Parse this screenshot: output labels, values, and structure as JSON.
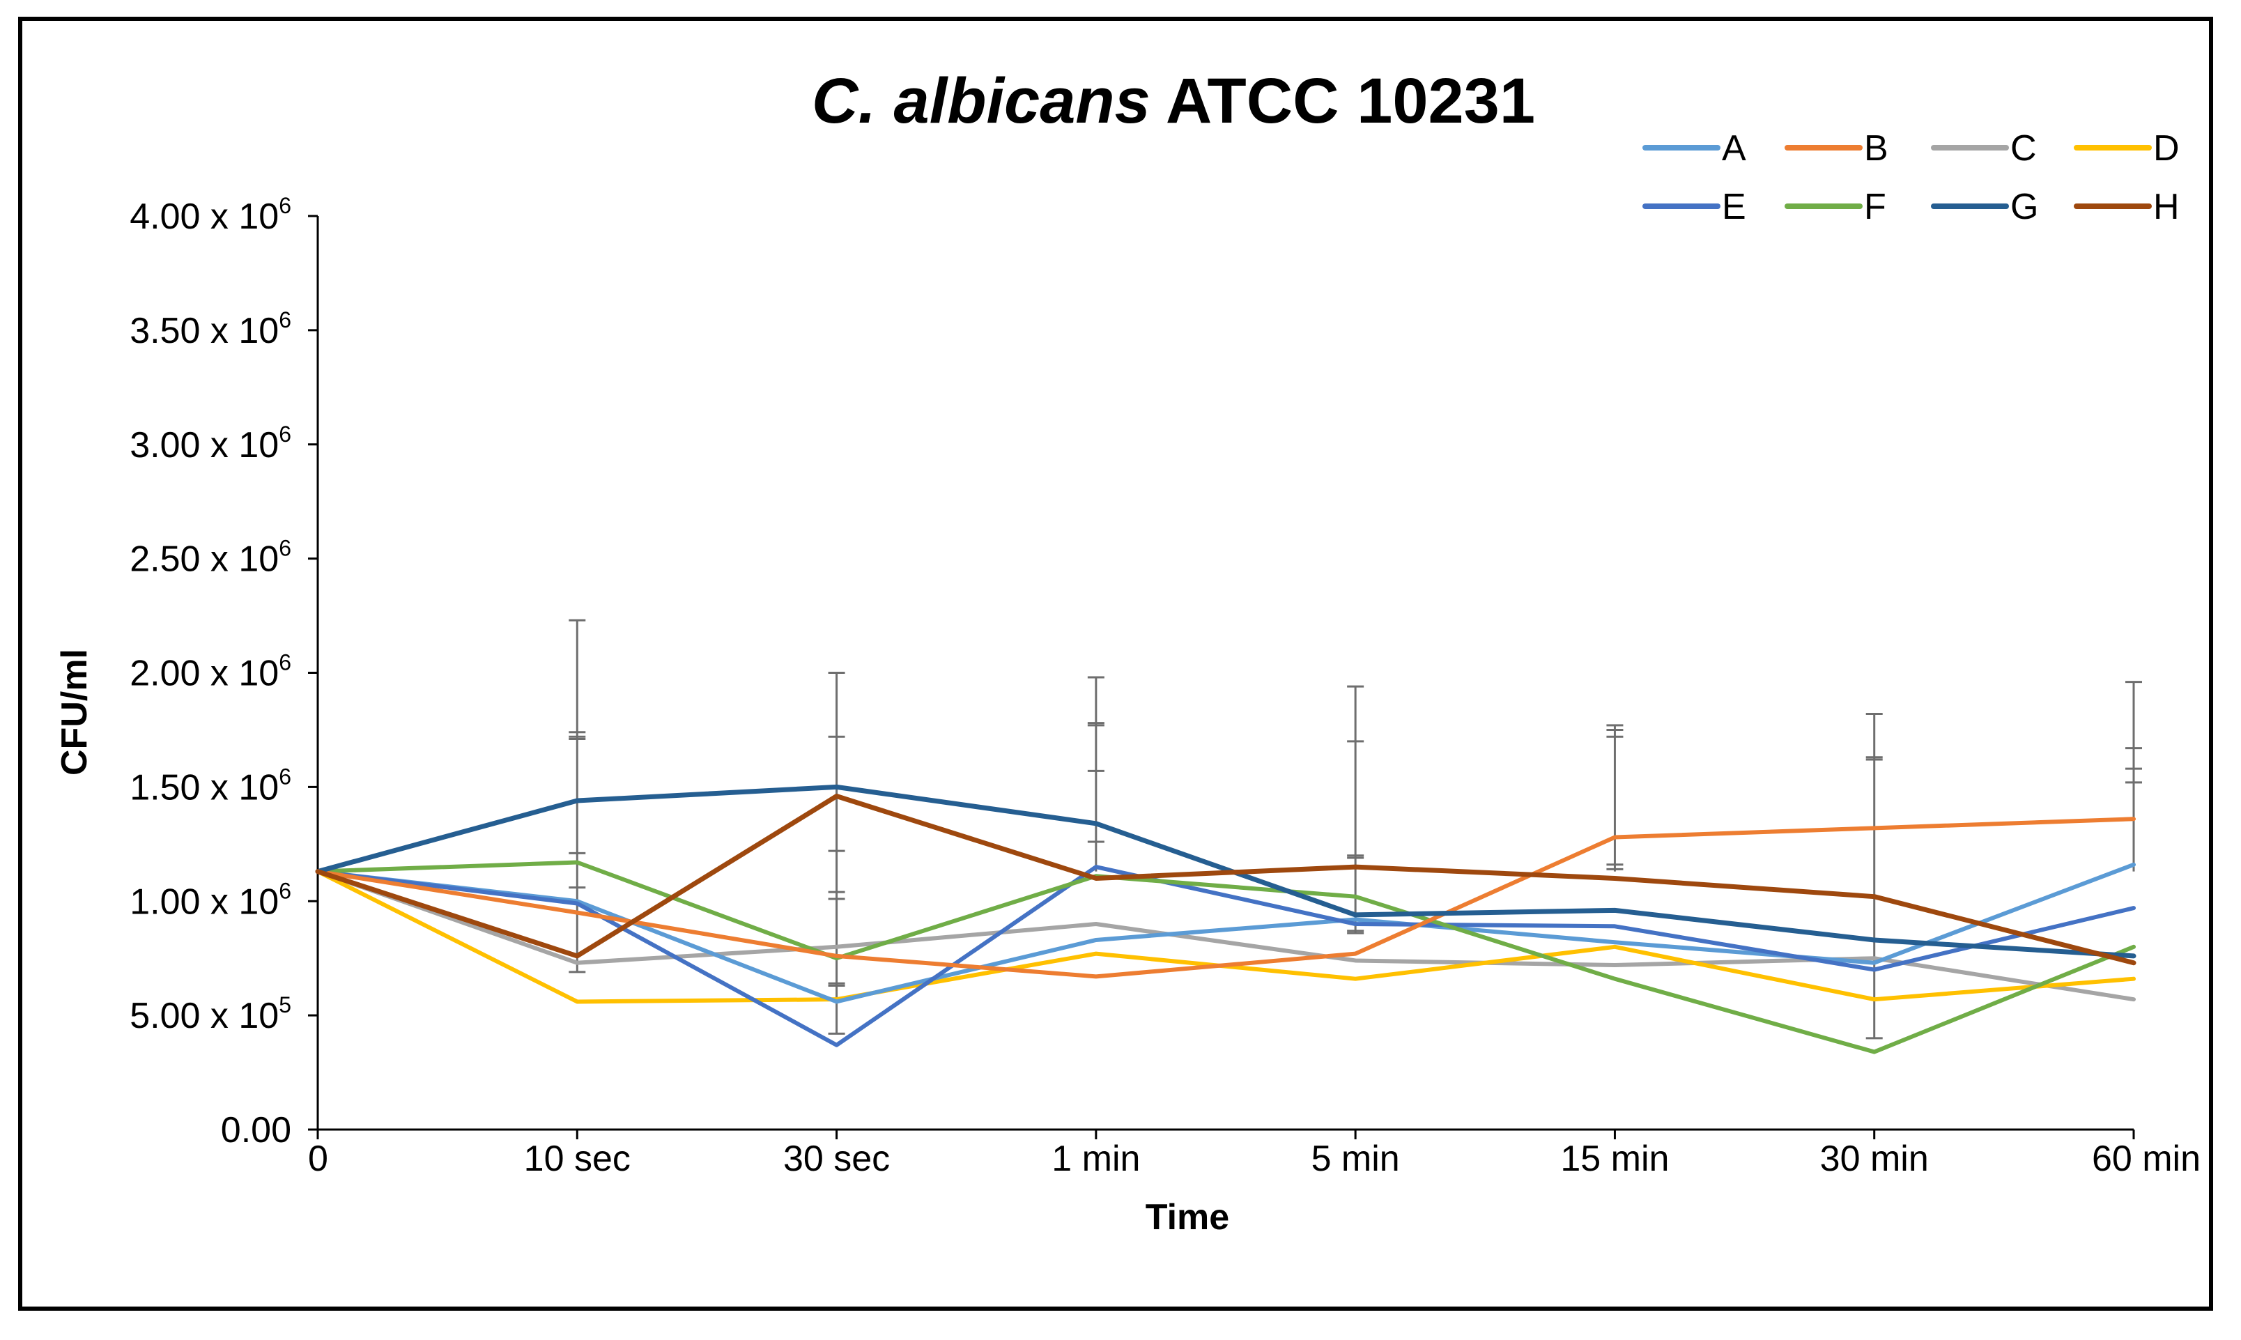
{
  "chart_data": {
    "type": "line",
    "title": "ATCC 10231",
    "title_species": "C. albicans",
    "xlabel": "Time",
    "ylabel": "CFU/ml",
    "ylim": [
      0,
      4000000
    ],
    "categories": [
      "0",
      "10 sec",
      "30 sec",
      "1 min",
      "5 min",
      "15 min",
      "30 min",
      "60 min"
    ],
    "y_ticks": [
      {
        "value": 0,
        "mantissa": "0.00",
        "exp": ""
      },
      {
        "value": 500000,
        "mantissa": "5.00 x 10",
        "exp": "5"
      },
      {
        "value": 1000000,
        "mantissa": "1.00 x 10",
        "exp": "6"
      },
      {
        "value": 1500000,
        "mantissa": "1.50 x 10",
        "exp": "6"
      },
      {
        "value": 2000000,
        "mantissa": "2.00 x 10",
        "exp": "6"
      },
      {
        "value": 2500000,
        "mantissa": "2.50 x 10",
        "exp": "6"
      },
      {
        "value": 3000000,
        "mantissa": "3.00 x 10",
        "exp": "6"
      },
      {
        "value": 3500000,
        "mantissa": "3.50 x 10",
        "exp": "6"
      },
      {
        "value": 4000000,
        "mantissa": "4.00 x 10",
        "exp": "6"
      }
    ],
    "series": [
      {
        "name": "A",
        "color": "#5b9bd5",
        "values": [
          1130000,
          1000000,
          560000,
          830000,
          920000,
          820000,
          730000,
          1160000
        ]
      },
      {
        "name": "B",
        "color": "#ed7d31",
        "values": [
          1130000,
          950000,
          760000,
          670000,
          770000,
          1280000,
          1320000,
          1360000
        ]
      },
      {
        "name": "C",
        "color": "#a5a5a5",
        "values": [
          1130000,
          730000,
          800000,
          900000,
          740000,
          720000,
          750000,
          570000
        ]
      },
      {
        "name": "D",
        "color": "#ffc000",
        "values": [
          1130000,
          560000,
          570000,
          770000,
          660000,
          800000,
          570000,
          660000
        ]
      },
      {
        "name": "E",
        "color": "#4472c4",
        "values": [
          1130000,
          990000,
          370000,
          1150000,
          900000,
          890000,
          700000,
          970000
        ]
      },
      {
        "name": "F",
        "color": "#70ad47",
        "values": [
          1130000,
          1170000,
          750000,
          1110000,
          1020000,
          660000,
          340000,
          800000
        ]
      },
      {
        "name": "G",
        "color": "#255e91",
        "values": [
          1130000,
          1440000,
          1500000,
          1340000,
          940000,
          960000,
          830000,
          760000
        ]
      },
      {
        "name": "H",
        "color": "#9e480e",
        "values": [
          1130000,
          760000,
          1460000,
          1100000,
          1150000,
          1100000,
          1020000,
          730000
        ]
      }
    ],
    "error_bars": [
      [],
      [
        2230000,
        1740000,
        1720000,
        1710000,
        1210000,
        1060000,
        690000
      ],
      [
        2000000,
        1720000,
        1220000,
        1040000,
        1010000,
        640000,
        630000,
        420000
      ],
      [
        1980000,
        1780000,
        1770000,
        1570000,
        1260000
      ],
      [
        1940000,
        1700000,
        1200000,
        1190000,
        870000,
        860000
      ],
      [
        1770000,
        1750000,
        1720000,
        1160000,
        1140000
      ],
      [
        1820000,
        1630000,
        1620000,
        400000
      ],
      [
        1960000,
        1670000,
        1580000,
        1520000
      ]
    ],
    "legend_position": "top-right",
    "grid": false
  }
}
